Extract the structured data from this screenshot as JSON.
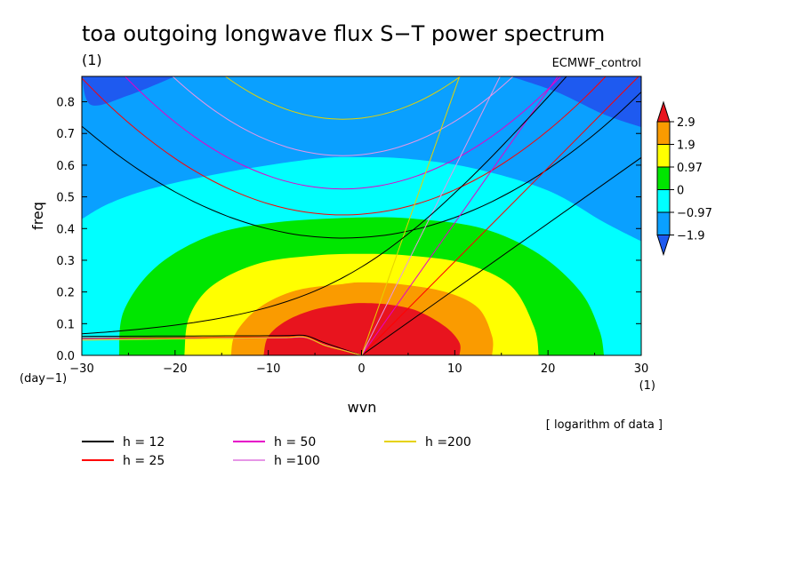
{
  "chart_data": {
    "type": "heatmap",
    "title": "toa outgoing longwave flux S−T power spectrum",
    "subtitle": "(1)",
    "dataset_label": "ECMWF_control",
    "xlabel": "wvn",
    "ylabel": "freq",
    "x_unit": "(1)",
    "y_unit": "(day−1)",
    "note": "[ logarithm of data ]",
    "xlim": [
      -30,
      30
    ],
    "ylim": [
      0,
      0.88
    ],
    "x_ticks": [
      "−30",
      "−20",
      "−10",
      "0",
      "10",
      "20",
      "30"
    ],
    "y_ticks": [
      "0.0",
      "0.1",
      "0.2",
      "0.3",
      "0.4",
      "0.5",
      "0.6",
      "0.7",
      "0.8"
    ],
    "colorbar": {
      "levels": [
        "2.9",
        "1.9",
        "0.97",
        "0",
        "−0.97",
        "−1.9"
      ],
      "colors": [
        "#e8141e",
        "#fa9b00",
        "#ffff00",
        "#00e600",
        "#00ffff",
        "#0aa0ff",
        "#1e5af0"
      ]
    },
    "contour_regions": [
      {
        "level_min": "1.9",
        "color": "#e8141e",
        "boundary_x": [
          -10.5,
          -10,
          -8,
          -5,
          -2,
          0,
          3,
          6,
          9,
          10.5,
          10.5
        ],
        "boundary_y": [
          0,
          0.06,
          0.11,
          0.145,
          0.16,
          0.165,
          0.16,
          0.14,
          0.09,
          0.04,
          0
        ]
      },
      {
        "level_min": "0.97",
        "color": "#fa9b00",
        "boundary_x": [
          -14,
          -13.5,
          -11,
          -7,
          -2,
          0,
          4,
          9,
          12.5,
          14,
          14
        ],
        "boundary_y": [
          0,
          0.07,
          0.15,
          0.205,
          0.225,
          0.23,
          0.225,
          0.2,
          0.15,
          0.06,
          0
        ]
      },
      {
        "level_min": "0",
        "color": "#ffff00",
        "boundary_x": [
          -19,
          -18.5,
          -16,
          -11,
          -5,
          0,
          5,
          11,
          16,
          18.5,
          19
        ],
        "boundary_y": [
          0,
          0.12,
          0.22,
          0.29,
          0.315,
          0.32,
          0.315,
          0.29,
          0.22,
          0.09,
          0
        ]
      },
      {
        "level_min": "−0.97",
        "color": "#00e600",
        "boundary_x": [
          -26,
          -25.5,
          -22,
          -16,
          -9,
          0,
          6,
          13,
          19,
          23.5,
          25.5,
          26
        ],
        "boundary_y": [
          0,
          0.14,
          0.28,
          0.38,
          0.42,
          0.435,
          0.43,
          0.4,
          0.32,
          0.2,
          0.08,
          0
        ]
      },
      {
        "level_min": "−1.9",
        "color": "#00ffff",
        "boundary_x": [
          -30,
          -27,
          -22,
          -14,
          -5,
          0,
          5,
          12,
          20,
          26,
          30
        ],
        "boundary_y": [
          0.43,
          0.48,
          0.53,
          0.58,
          0.62,
          0.625,
          0.62,
          0.59,
          0.52,
          0.42,
          0.36
        ]
      },
      {
        "level_min": "below −1.9",
        "color": "#1e5af0",
        "corners": [
          "top-left",
          "top-right"
        ]
      }
    ],
    "series": [
      {
        "name": "h = 12",
        "color": "#000000"
      },
      {
        "name": "h = 25",
        "color": "#ff0000"
      },
      {
        "name": "h = 50",
        "color": "#e600c8"
      },
      {
        "name": "h =100",
        "color": "#e696e6"
      },
      {
        "name": "h =200",
        "color": "#e6d200"
      }
    ],
    "dispersion_curves": {
      "kelvin_slope": [
        0.0208,
        0.0296,
        0.0418,
        0.0592,
        0.0837
      ],
      "ig_min_freq": [
        0.37,
        0.443,
        0.525,
        0.63,
        0.745
      ],
      "rossby_freq_at_-30": [
        0.06,
        0.054,
        0.05,
        0.049,
        0.048
      ],
      "mrg_curve": "h = 12"
    }
  }
}
